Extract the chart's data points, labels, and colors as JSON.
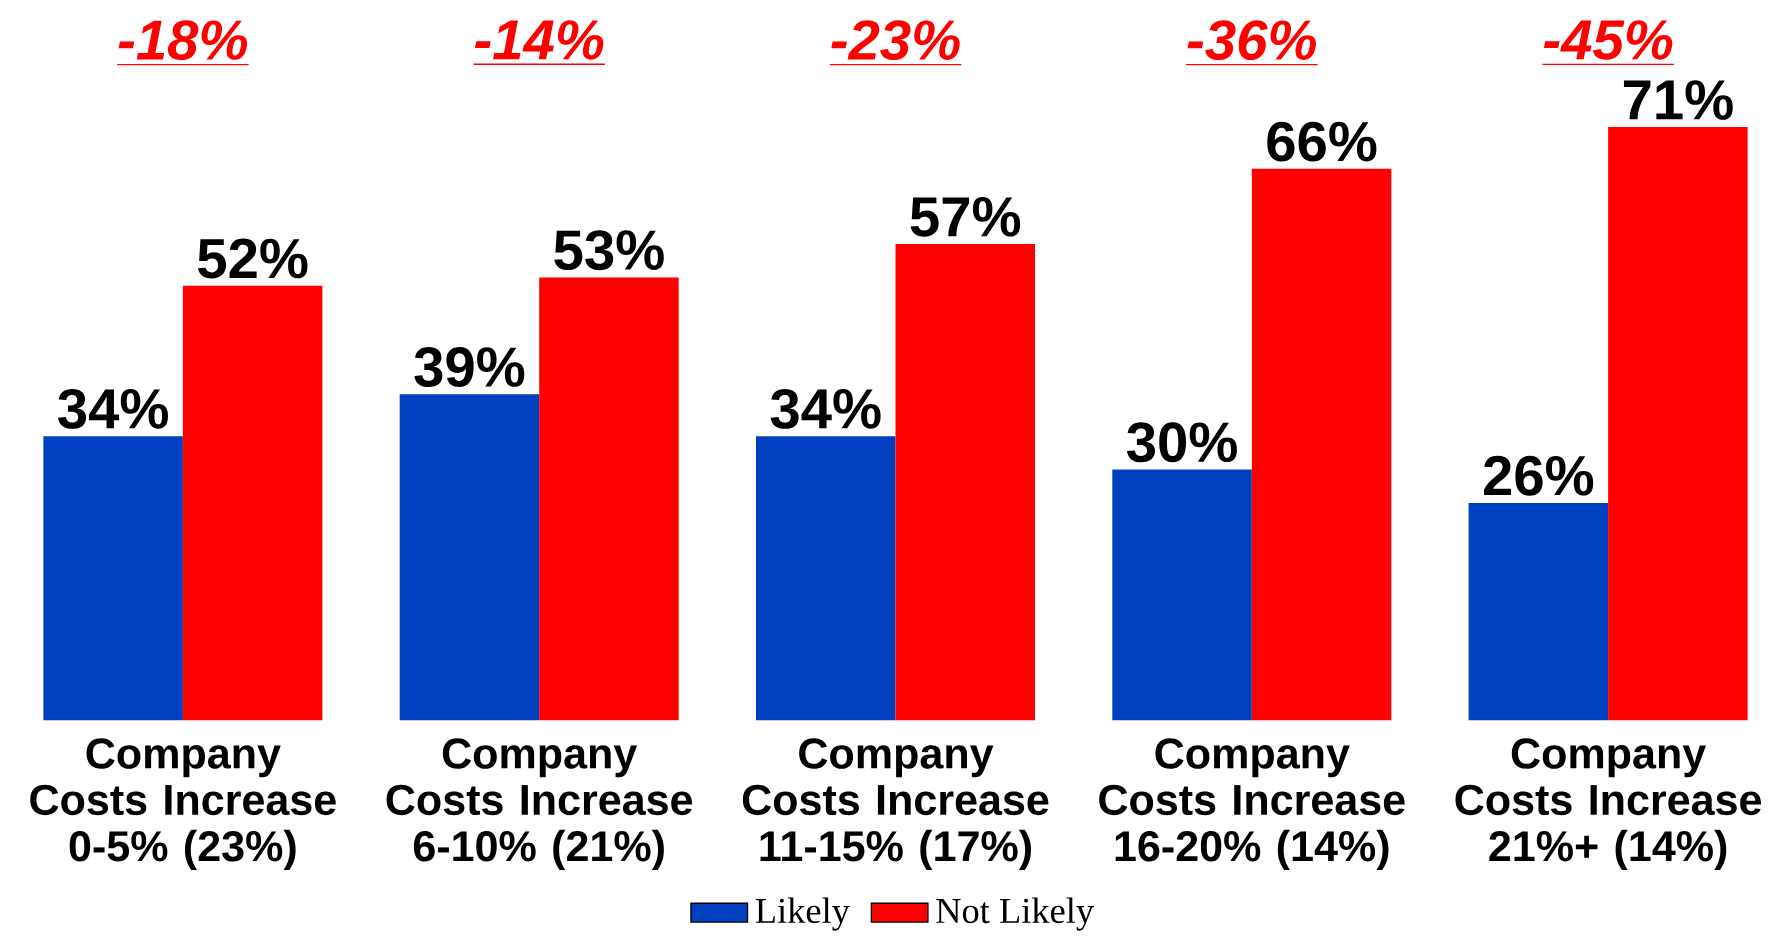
{
  "chart_data": {
    "type": "bar",
    "categories": [
      "Company Costs Increase 0-5% (23%)",
      "Company Costs Increase 6-10% (21%)",
      "Company Costs Increase 11-15% (17%)",
      "Company Costs Increase 16-20% (14%)",
      "Company Costs Increase 21%+ (14%)"
    ],
    "series": [
      {
        "name": "Likely",
        "color": "#003fbf",
        "values": [
          34,
          39,
          34,
          30,
          26
        ],
        "value_labels": [
          "34%",
          "39%",
          "34%",
          "30%",
          "26%"
        ]
      },
      {
        "name": "Not Likely",
        "color": "#ff0000",
        "values": [
          52,
          53,
          57,
          66,
          71
        ],
        "value_labels": [
          "52%",
          "53%",
          "57%",
          "66%",
          "71%"
        ]
      }
    ],
    "legend": "bottom",
    "annotations": [
      "-18%",
      "-14%",
      "-23%",
      "-36%",
      "-45%"
    ]
  }
}
